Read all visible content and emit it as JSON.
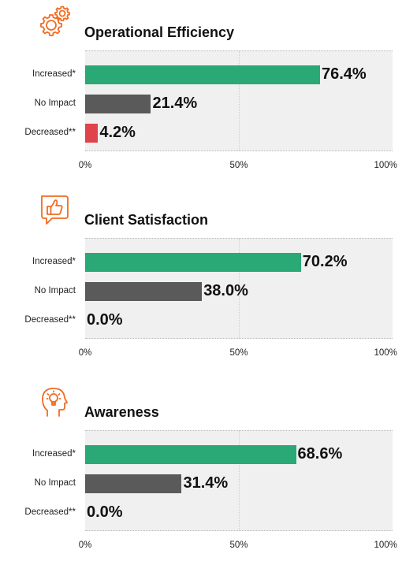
{
  "chart_data": [
    {
      "type": "bar",
      "orientation": "horizontal",
      "title": "Operational Efficiency",
      "icon": "gears-icon",
      "categories": [
        "Increased*",
        "No Impact",
        "Decreased**"
      ],
      "values": [
        76.4,
        21.4,
        4.2
      ],
      "value_labels": [
        "76.4%",
        "21.4%",
        "4.2%"
      ],
      "colors": [
        "#2aa876",
        "#5a5a5a",
        "#e0434b"
      ],
      "xlim": [
        0,
        100
      ],
      "ticks": [
        "0%",
        "50%",
        "100%"
      ],
      "grid": true
    },
    {
      "type": "bar",
      "orientation": "horizontal",
      "title": "Client Satisfaction",
      "icon": "thumbs-up-chat-icon",
      "categories": [
        "Increased*",
        "No Impact",
        "Decreased**"
      ],
      "values": [
        70.2,
        38.0,
        0.0
      ],
      "value_labels": [
        "70.2%",
        "38.0%",
        "0.0%"
      ],
      "colors": [
        "#2aa876",
        "#5a5a5a",
        "#e0434b"
      ],
      "xlim": [
        0,
        100
      ],
      "ticks": [
        "0%",
        "50%",
        "100%"
      ],
      "grid": true
    },
    {
      "type": "bar",
      "orientation": "horizontal",
      "title": "Awareness",
      "icon": "head-lightbulb-icon",
      "categories": [
        "Increased*",
        "No Impact",
        "Decreased**"
      ],
      "values": [
        68.6,
        31.4,
        0.0
      ],
      "value_labels": [
        "68.6%",
        "31.4%",
        "0.0%"
      ],
      "colors": [
        "#2aa876",
        "#5a5a5a",
        "#e0434b"
      ],
      "xlim": [
        0,
        100
      ],
      "ticks": [
        "0%",
        "50%",
        "100%"
      ],
      "grid": true
    }
  ],
  "accent_color": "#f26b21"
}
